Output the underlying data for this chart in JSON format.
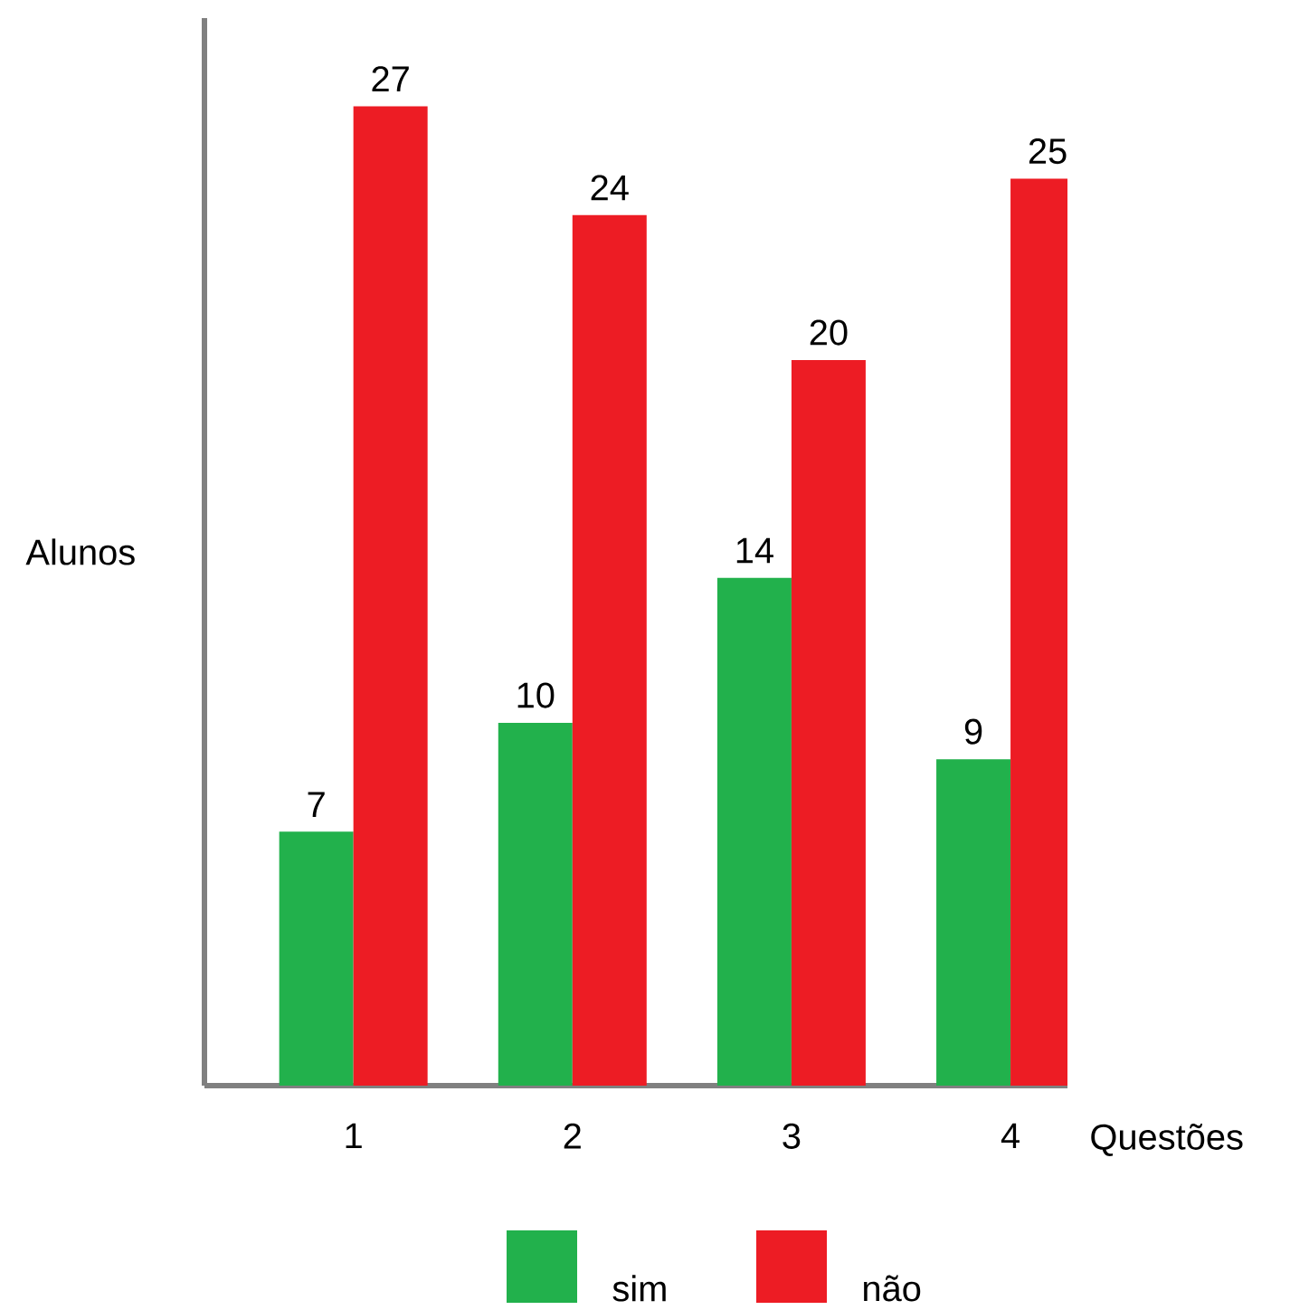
{
  "chart_data": {
    "type": "bar",
    "xlabel": "Questões",
    "ylabel": "Alunos",
    "categories": [
      "1",
      "2",
      "3",
      "4"
    ],
    "series": [
      {
        "name": "sim",
        "color": "#22b14c",
        "values": [
          7,
          10,
          14,
          9
        ]
      },
      {
        "name": "não",
        "color": "#ed1c24",
        "values": [
          27,
          24,
          20,
          25
        ]
      }
    ],
    "relative": false,
    "data_labels": true,
    "legend": "bottom"
  }
}
